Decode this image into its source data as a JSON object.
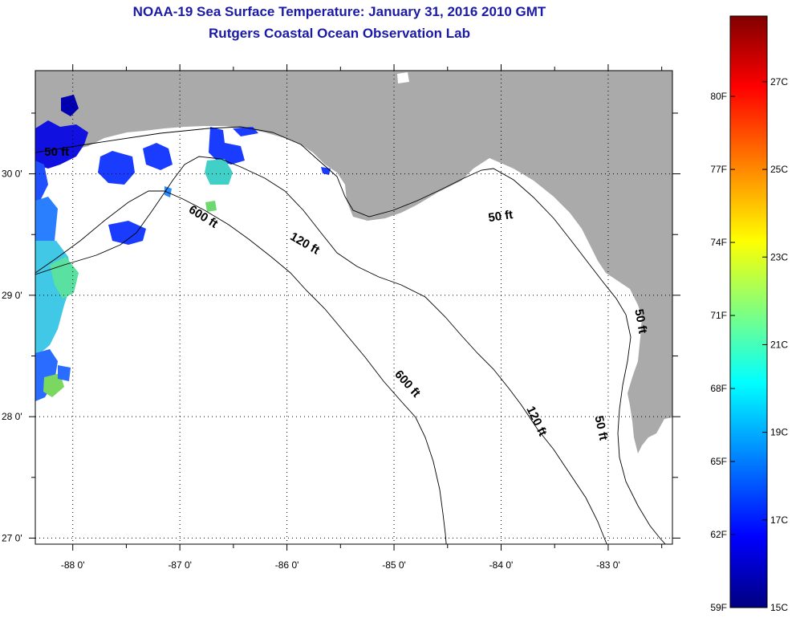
{
  "header": {
    "title": "NOAA-19 Sea Surface Temperature:  January 31, 2016 2010 GMT",
    "subtitle": "Rutgers Coastal Ocean Observation Lab"
  },
  "map": {
    "region": "Northeastern Gulf of Mexico",
    "lon_range": [
      -88.35,
      -82.4
    ],
    "lat_range": [
      26.95,
      30.85
    ],
    "x_ticks": [
      {
        "lon": -88,
        "label": "-88 0'"
      },
      {
        "lon": -87,
        "label": "-87 0'"
      },
      {
        "lon": -86,
        "label": "-86 0'"
      },
      {
        "lon": -85,
        "label": "-85 0'"
      },
      {
        "lon": -84,
        "label": "-84 0'"
      },
      {
        "lon": -83,
        "label": "-83 0'"
      }
    ],
    "y_ticks": [
      {
        "lat": 30,
        "label": "30 0'"
      },
      {
        "lat": 29,
        "label": "29 0'"
      },
      {
        "lat": 28,
        "label": "28 0'"
      },
      {
        "lat": 27,
        "label": "27 0'"
      }
    ],
    "contour_labels": [
      {
        "text": "600 ft",
        "lon": -86.8,
        "lat": 29.62,
        "angle": 32
      },
      {
        "text": "120 ft",
        "lon": -85.85,
        "lat": 29.4,
        "angle": 30
      },
      {
        "text": "50 ft",
        "lon": -84.0,
        "lat": 29.62,
        "angle": -8
      },
      {
        "text": "600 ft",
        "lon": -84.9,
        "lat": 28.25,
        "angle": 48
      },
      {
        "text": "120 ft",
        "lon": -83.7,
        "lat": 27.95,
        "angle": 64
      },
      {
        "text": "50 ft",
        "lon": -83.1,
        "lat": 27.9,
        "angle": 78
      },
      {
        "text": "50 ft",
        "lon": -88.15,
        "lat": 30.15,
        "angle": 0
      },
      {
        "text": "50 ft",
        "lon": -82.73,
        "lat": 28.78,
        "angle": 80
      }
    ],
    "land_color": "#aaaaaa",
    "water_color": "#ffffff"
  },
  "colorbar": {
    "min_F": 59,
    "max_F": 83.3,
    "fahrenheit_ticks": [
      {
        "value": 80,
        "label": "80F"
      },
      {
        "value": 77,
        "label": "77F"
      },
      {
        "value": 74,
        "label": "74F"
      },
      {
        "value": 71,
        "label": "71F"
      },
      {
        "value": 68,
        "label": "68F"
      },
      {
        "value": 65,
        "label": "65F"
      },
      {
        "value": 62,
        "label": "62F"
      },
      {
        "value": 59,
        "label": "59F"
      }
    ],
    "celsius_ticks": [
      {
        "value": 27,
        "label": "27C"
      },
      {
        "value": 25,
        "label": "25C"
      },
      {
        "value": 23,
        "label": "23C"
      },
      {
        "value": 21,
        "label": "21C"
      },
      {
        "value": 19,
        "label": "19C"
      },
      {
        "value": 17,
        "label": "17C"
      },
      {
        "value": 15,
        "label": "15C"
      }
    ]
  }
}
